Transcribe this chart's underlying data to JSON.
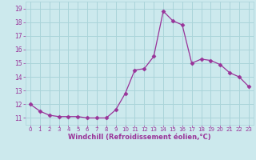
{
  "x": [
    0,
    1,
    2,
    3,
    4,
    5,
    6,
    7,
    8,
    9,
    10,
    11,
    12,
    13,
    14,
    15,
    16,
    17,
    18,
    19,
    20,
    21,
    22,
    23
  ],
  "y": [
    12.0,
    11.5,
    11.2,
    11.1,
    11.1,
    11.1,
    11.0,
    11.0,
    11.0,
    11.6,
    12.8,
    14.5,
    14.6,
    15.5,
    18.8,
    18.1,
    17.8,
    15.0,
    15.3,
    15.2,
    14.9,
    14.3,
    14.0,
    13.3
  ],
  "line_color": "#993399",
  "marker": "D",
  "marker_size": 2.5,
  "bg_color": "#cce9ed",
  "grid_color": "#aad4d9",
  "xlabel": "Windchill (Refroidissement éolien,°C)",
  "xlabel_color": "#993399",
  "tick_color": "#993399",
  "label_color": "#993399",
  "ylim": [
    10.5,
    19.5
  ],
  "yticks": [
    11,
    12,
    13,
    14,
    15,
    16,
    17,
    18,
    19
  ],
  "xlim": [
    -0.5,
    23.5
  ],
  "xticks": [
    0,
    1,
    2,
    3,
    4,
    5,
    6,
    7,
    8,
    9,
    10,
    11,
    12,
    13,
    14,
    15,
    16,
    17,
    18,
    19,
    20,
    21,
    22,
    23
  ],
  "xtick_labels": [
    "0",
    "1",
    "2",
    "3",
    "4",
    "5",
    "6",
    "7",
    "8",
    "9",
    "10",
    "11",
    "12",
    "13",
    "14",
    "15",
    "16",
    "17",
    "18",
    "19",
    "20",
    "21",
    "22",
    "23"
  ]
}
